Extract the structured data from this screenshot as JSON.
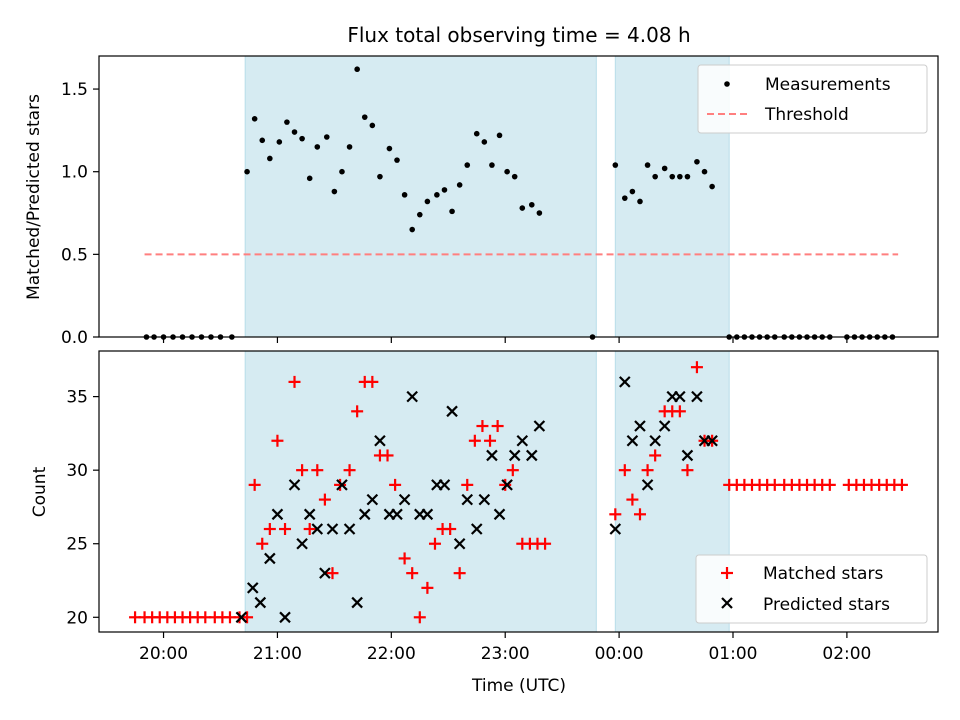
{
  "chart_data": [
    {
      "type": "scatter",
      "title": "Flux total observing time = 4.08 h",
      "xlabel": "",
      "ylabel": "Matched/Predicted stars",
      "ylim": [
        0,
        1.7
      ],
      "yticks": [
        0.0,
        0.5,
        1.0,
        1.5
      ],
      "ytick_labels": [
        "0.0",
        "0.5",
        "1.0",
        "1.5"
      ],
      "shaded_intervals": [
        [
          "20:43",
          "23:48"
        ],
        [
          "23:58",
          "00:58"
        ]
      ],
      "threshold": {
        "name": "Threshold",
        "value": 0.5,
        "x_range": [
          "19:50",
          "02:27"
        ],
        "color": "#ff7f7f"
      },
      "legend": {
        "position": "upper-right",
        "entries": [
          "Measurements",
          "Threshold"
        ]
      },
      "series": [
        {
          "name": "Measurements",
          "color": "#000000",
          "marker": "dot",
          "points": [
            [
              "19:51",
              0
            ],
            [
              "19:55",
              0
            ],
            [
              "20:00",
              0
            ],
            [
              "20:05",
              0
            ],
            [
              "20:10",
              0
            ],
            [
              "20:15",
              0
            ],
            [
              "20:20",
              0
            ],
            [
              "20:25",
              0
            ],
            [
              "20:30",
              0
            ],
            [
              "20:36",
              0
            ],
            [
              "20:44",
              1.0
            ],
            [
              "20:48",
              1.32
            ],
            [
              "20:52",
              1.19
            ],
            [
              "20:56",
              1.08
            ],
            [
              "21:01",
              1.18
            ],
            [
              "21:05",
              1.3
            ],
            [
              "21:09",
              1.24
            ],
            [
              "21:13",
              1.2
            ],
            [
              "21:17",
              0.96
            ],
            [
              "21:21",
              1.15
            ],
            [
              "21:26",
              1.21
            ],
            [
              "21:30",
              0.88
            ],
            [
              "21:34",
              1.0
            ],
            [
              "21:38",
              1.15
            ],
            [
              "21:42",
              1.62
            ],
            [
              "21:46",
              1.33
            ],
            [
              "21:50",
              1.28
            ],
            [
              "21:54",
              0.97
            ],
            [
              "21:59",
              1.14
            ],
            [
              "22:03",
              1.07
            ],
            [
              "22:07",
              0.86
            ],
            [
              "22:11",
              0.65
            ],
            [
              "22:15",
              0.74
            ],
            [
              "22:19",
              0.82
            ],
            [
              "22:24",
              0.86
            ],
            [
              "22:28",
              0.89
            ],
            [
              "22:32",
              0.76
            ],
            [
              "22:36",
              0.92
            ],
            [
              "22:40",
              1.04
            ],
            [
              "22:45",
              1.23
            ],
            [
              "22:49",
              1.18
            ],
            [
              "22:53",
              1.04
            ],
            [
              "22:57",
              1.22
            ],
            [
              "23:01",
              1.0
            ],
            [
              "23:05",
              0.97
            ],
            [
              "23:09",
              0.78
            ],
            [
              "23:14",
              0.8
            ],
            [
              "23:18",
              0.75
            ],
            [
              "23:46",
              0
            ],
            [
              "23:58",
              1.04
            ],
            [
              "00:03",
              0.84
            ],
            [
              "00:07",
              0.88
            ],
            [
              "00:11",
              0.82
            ],
            [
              "00:15",
              1.04
            ],
            [
              "00:19",
              0.97
            ],
            [
              "00:24",
              1.02
            ],
            [
              "00:28",
              0.97
            ],
            [
              "00:32",
              0.97
            ],
            [
              "00:36",
              0.97
            ],
            [
              "00:41",
              1.06
            ],
            [
              "00:45",
              1.0
            ],
            [
              "00:49",
              0.91
            ],
            [
              "00:58",
              0
            ],
            [
              "01:02",
              0
            ],
            [
              "01:06",
              0
            ],
            [
              "01:10",
              0
            ],
            [
              "01:14",
              0
            ],
            [
              "01:18",
              0
            ],
            [
              "01:22",
              0
            ],
            [
              "01:27",
              0
            ],
            [
              "01:31",
              0
            ],
            [
              "01:35",
              0
            ],
            [
              "01:39",
              0
            ],
            [
              "01:43",
              0
            ],
            [
              "01:47",
              0
            ],
            [
              "01:51",
              0
            ],
            [
              "02:00",
              0
            ],
            [
              "02:04",
              0
            ],
            [
              "02:08",
              0
            ],
            [
              "02:12",
              0
            ],
            [
              "02:16",
              0
            ],
            [
              "02:20",
              0
            ],
            [
              "02:24",
              0
            ]
          ]
        }
      ]
    },
    {
      "type": "scatter",
      "title": "",
      "xlabel": "Time (UTC)",
      "ylabel": "Count",
      "ylim": [
        19,
        38.1
      ],
      "yticks": [
        20,
        25,
        30,
        35
      ],
      "ytick_labels": [
        "20",
        "25",
        "30",
        "35"
      ],
      "xlim": [
        "19:26",
        "02:48"
      ],
      "xticks": [
        "20:00",
        "21:00",
        "22:00",
        "23:00",
        "00:00",
        "01:00",
        "02:00"
      ],
      "shaded_intervals": [
        [
          "20:43",
          "23:48"
        ],
        [
          "23:58",
          "00:58"
        ]
      ],
      "legend": {
        "position": "lower-right",
        "entries": [
          "Matched stars",
          "Predicted stars"
        ]
      },
      "series": [
        {
          "name": "Matched stars",
          "color": "#ff0000",
          "marker": "plus",
          "points": [
            [
              "19:45",
              20
            ],
            [
              "19:50",
              20
            ],
            [
              "19:54",
              20
            ],
            [
              "19:58",
              20
            ],
            [
              "20:02",
              20
            ],
            [
              "20:06",
              20
            ],
            [
              "20:10",
              20
            ],
            [
              "20:14",
              20
            ],
            [
              "20:18",
              20
            ],
            [
              "20:22",
              20
            ],
            [
              "20:27",
              20
            ],
            [
              "20:31",
              20
            ],
            [
              "20:35",
              20
            ],
            [
              "20:40",
              20
            ],
            [
              "20:44",
              20
            ],
            [
              "20:48",
              29
            ],
            [
              "20:52",
              25
            ],
            [
              "20:56",
              26
            ],
            [
              "21:00",
              32
            ],
            [
              "21:04",
              26
            ],
            [
              "21:09",
              36
            ],
            [
              "21:13",
              30
            ],
            [
              "21:17",
              26
            ],
            [
              "21:21",
              30
            ],
            [
              "21:25",
              28
            ],
            [
              "21:29",
              23
            ],
            [
              "21:33",
              29
            ],
            [
              "21:38",
              30
            ],
            [
              "21:42",
              34
            ],
            [
              "21:46",
              36
            ],
            [
              "21:50",
              36
            ],
            [
              "21:54",
              31
            ],
            [
              "21:58",
              31
            ],
            [
              "22:02",
              29
            ],
            [
              "22:07",
              24
            ],
            [
              "22:11",
              23
            ],
            [
              "22:15",
              20
            ],
            [
              "22:19",
              22
            ],
            [
              "22:23",
              25
            ],
            [
              "22:27",
              26
            ],
            [
              "22:31",
              26
            ],
            [
              "22:36",
              23
            ],
            [
              "22:40",
              29
            ],
            [
              "22:44",
              32
            ],
            [
              "22:48",
              33
            ],
            [
              "22:52",
              32
            ],
            [
              "22:56",
              33
            ],
            [
              "23:00",
              29
            ],
            [
              "23:04",
              30
            ],
            [
              "23:09",
              25
            ],
            [
              "23:13",
              25
            ],
            [
              "23:17",
              25
            ],
            [
              "23:21",
              25
            ],
            [
              "23:58",
              27
            ],
            [
              "00:03",
              30
            ],
            [
              "00:07",
              28
            ],
            [
              "00:11",
              27
            ],
            [
              "00:15",
              30
            ],
            [
              "00:19",
              31
            ],
            [
              "00:24",
              34
            ],
            [
              "00:28",
              34
            ],
            [
              "00:32",
              34
            ],
            [
              "00:36",
              30
            ],
            [
              "00:41",
              37
            ],
            [
              "00:45",
              32
            ],
            [
              "00:49",
              32
            ],
            [
              "00:58",
              29
            ],
            [
              "01:02",
              29
            ],
            [
              "01:06",
              29
            ],
            [
              "01:10",
              29
            ],
            [
              "01:14",
              29
            ],
            [
              "01:18",
              29
            ],
            [
              "01:22",
              29
            ],
            [
              "01:27",
              29
            ],
            [
              "01:31",
              29
            ],
            [
              "01:35",
              29
            ],
            [
              "01:39",
              29
            ],
            [
              "01:43",
              29
            ],
            [
              "01:47",
              29
            ],
            [
              "01:51",
              29
            ],
            [
              "02:01",
              29
            ],
            [
              "02:05",
              29
            ],
            [
              "02:09",
              29
            ],
            [
              "02:13",
              29
            ],
            [
              "02:17",
              29
            ],
            [
              "02:21",
              29
            ],
            [
              "02:25",
              29
            ],
            [
              "02:29",
              29
            ]
          ]
        },
        {
          "name": "Predicted stars",
          "color": "#000000",
          "marker": "x",
          "points": [
            [
              "20:41",
              20
            ],
            [
              "20:47",
              22
            ],
            [
              "20:51",
              21
            ],
            [
              "20:56",
              24
            ],
            [
              "21:00",
              27
            ],
            [
              "21:04",
              20
            ],
            [
              "21:09",
              29
            ],
            [
              "21:13",
              25
            ],
            [
              "21:17",
              27
            ],
            [
              "21:21",
              26
            ],
            [
              "21:25",
              23
            ],
            [
              "21:29",
              26
            ],
            [
              "21:34",
              29
            ],
            [
              "21:38",
              26
            ],
            [
              "21:42",
              21
            ],
            [
              "21:46",
              27
            ],
            [
              "21:50",
              28
            ],
            [
              "21:54",
              32
            ],
            [
              "21:59",
              27
            ],
            [
              "22:03",
              27
            ],
            [
              "22:07",
              28
            ],
            [
              "22:11",
              35
            ],
            [
              "22:15",
              27
            ],
            [
              "22:19",
              27
            ],
            [
              "22:24",
              29
            ],
            [
              "22:28",
              29
            ],
            [
              "22:32",
              34
            ],
            [
              "22:36",
              25
            ],
            [
              "22:40",
              28
            ],
            [
              "22:45",
              26
            ],
            [
              "22:49",
              28
            ],
            [
              "22:53",
              31
            ],
            [
              "22:57",
              27
            ],
            [
              "23:01",
              29
            ],
            [
              "23:05",
              31
            ],
            [
              "23:09",
              32
            ],
            [
              "23:14",
              31
            ],
            [
              "23:18",
              33
            ],
            [
              "23:58",
              26
            ],
            [
              "00:03",
              36
            ],
            [
              "00:07",
              32
            ],
            [
              "00:11",
              33
            ],
            [
              "00:15",
              29
            ],
            [
              "00:19",
              32
            ],
            [
              "00:24",
              33
            ],
            [
              "00:28",
              35
            ],
            [
              "00:32",
              35
            ],
            [
              "00:36",
              31
            ],
            [
              "00:41",
              35
            ],
            [
              "00:45",
              32
            ],
            [
              "00:49",
              32
            ]
          ]
        }
      ]
    }
  ]
}
